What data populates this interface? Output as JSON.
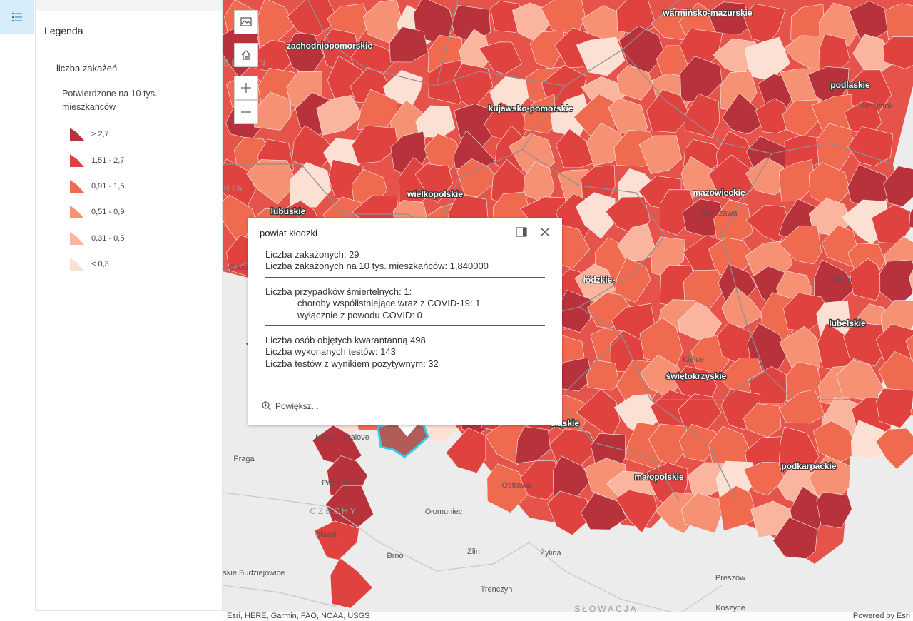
{
  "legend": {
    "title": "Legenda",
    "layer_title": "liczba zakażeń",
    "field_title": "Potwierdzone na 10 tys. mieszkańców",
    "items": [
      {
        "label": "> 2,7",
        "color": "#b8323c"
      },
      {
        "label": "1,51 - 2,7",
        "color": "#e0433f"
      },
      {
        "label": "0,91 - 1,5",
        "color": "#f06a50"
      },
      {
        "label": "0,51 - 0,9",
        "color": "#f79174"
      },
      {
        "label": "0,31 - 0,5",
        "color": "#fbb49d"
      },
      {
        "label": "< 0,3",
        "color": "#fde0d4"
      }
    ]
  },
  "map": {
    "region_labels": [
      "warmińsko-mazurskie",
      "zachodniopomorskie",
      "podlaskie",
      "kujawsko-pomorskie",
      "mazowieckie",
      "wielkopolskie",
      "lubuskie",
      "łódzkie",
      "lubelskie",
      "świętokrzyskie",
      "śląskie",
      "podkarpackie",
      "małopolskie"
    ],
    "place_labels": [
      "Hradec Kralove",
      "Praga",
      "Pardubice",
      "Ostrawa",
      "Ołomuniec",
      "Igława",
      "Zlin",
      "Żylina",
      "Brno",
      "Czeskie Budziejowice",
      "Trenczyn",
      "Preszów",
      "Koszyce",
      "Warszawa",
      "Lublin",
      "Kielce",
      "Białystok",
      "Chociebuż"
    ],
    "country_labels": [
      "CZECHY",
      "SŁOWACJA",
      "GRIA",
      "BERLIN"
    ]
  },
  "popup": {
    "title": "powiat kłodzki",
    "infected_label": "Liczba zakażonych: 29",
    "infected_per10k_label": "Liczba zakażonych na 10 tys. mieszkańców: 1,840000",
    "deaths_label": "Liczba przypadków śmiertelnych: 1:",
    "deaths_comorbid_label": "choroby współistniejące wraz z COVID-19: 1",
    "deaths_covid_only_label": "wyłącznie z powodu COVID: 0",
    "quarantine_label": "Liczba osób objętych kwarantanną 498",
    "tests_label": "Liczba wykonanych testów: 143",
    "positive_tests_label": "Liczba testów z wynikiem pozytywnym: 32",
    "zoom_label": "Powiększ..."
  },
  "attribution": {
    "text": "Esri, HERE, Garmin, FAO, NOAA, USGS",
    "powered_by": "Powered by Esri"
  },
  "colors": {
    "accent": "#0079c1",
    "highlight": "#33ccee"
  }
}
